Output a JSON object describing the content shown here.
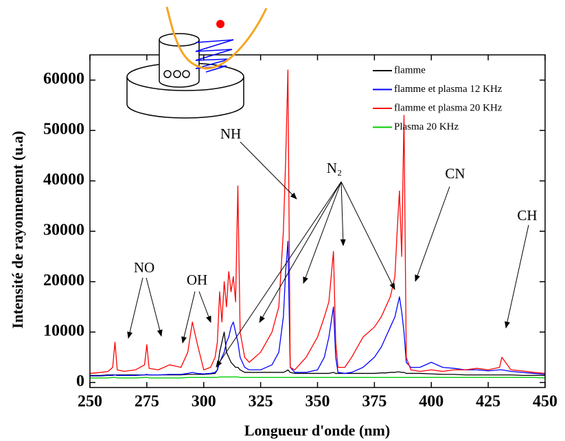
{
  "chart_data": {
    "type": "line",
    "x_label": "Longueur d'onde (nm)",
    "y_label": "Intensité de rayonnement (u.a)",
    "xlim": [
      250,
      450
    ],
    "xticks": [
      250,
      275,
      300,
      325,
      350,
      375,
      400,
      425,
      450
    ],
    "ylim": [
      -1000,
      65000
    ],
    "yticks": [
      0,
      10000,
      20000,
      30000,
      40000,
      50000,
      60000
    ],
    "legend_position": "upper right",
    "annotations": [
      "NO",
      "OH",
      "NH",
      "N₂",
      "CN",
      "CH"
    ],
    "x": [
      250,
      255,
      258,
      260,
      261,
      262,
      265,
      270,
      274,
      275,
      276,
      280,
      285,
      290,
      293,
      295,
      297,
      300,
      303,
      305,
      306,
      307,
      308,
      309,
      310,
      311,
      312,
      313,
      314,
      315,
      316,
      318,
      320,
      325,
      330,
      333,
      335,
      336,
      337,
      338,
      340,
      345,
      350,
      353,
      355,
      357,
      358,
      359,
      362,
      365,
      370,
      375,
      378,
      380,
      382,
      384,
      385,
      386,
      387,
      388,
      389,
      391,
      395,
      400,
      405,
      410,
      415,
      420,
      425,
      430,
      431,
      435,
      440,
      445,
      450
    ],
    "series": [
      {
        "name": "flamme",
        "color": "#000000",
        "values": [
          1400,
          1400,
          1500,
          1500,
          1500,
          1500,
          1500,
          1500,
          1500,
          1500,
          1500,
          1500,
          1500,
          1500,
          1600,
          1600,
          1600,
          1600,
          1700,
          1800,
          2500,
          6000,
          8000,
          10000,
          6000,
          5000,
          4000,
          3500,
          3000,
          3000,
          2500,
          2000,
          2000,
          2000,
          2000,
          2000,
          2000,
          2200,
          2500,
          2000,
          1800,
          1800,
          1800,
          1800,
          1800,
          2000,
          1800,
          1800,
          1800,
          1800,
          1800,
          1800,
          1900,
          1900,
          2000,
          2000,
          2100,
          2100,
          2000,
          2000,
          1800,
          1800,
          1800,
          1700,
          1600,
          1600,
          1500,
          1500,
          1500,
          1500,
          1500,
          1500,
          1400,
          1400,
          1400
        ]
      },
      {
        "name": "flamme et plasma 12 KHz",
        "color": "#0000ff",
        "values": [
          1300,
          1300,
          1400,
          1400,
          1500,
          1400,
          1400,
          1400,
          1500,
          1600,
          1500,
          1500,
          1600,
          1600,
          1800,
          2000,
          1800,
          1700,
          1800,
          2000,
          2500,
          4000,
          5000,
          6000,
          8000,
          9000,
          11000,
          12000,
          10000,
          8000,
          5000,
          3000,
          2500,
          2500,
          3500,
          6000,
          13000,
          22000,
          28000,
          3000,
          2000,
          2000,
          2500,
          5000,
          9000,
          15000,
          5000,
          2000,
          1800,
          2000,
          3000,
          5000,
          7000,
          9000,
          11000,
          13000,
          15000,
          17000,
          14000,
          10000,
          4000,
          3000,
          3000,
          4000,
          3000,
          2800,
          2500,
          2500,
          2300,
          2500,
          2500,
          2200,
          2000,
          1800,
          1600
        ]
      },
      {
        "name": "flamme et plasma 20 KHz",
        "color": "#ff0000",
        "values": [
          1800,
          2000,
          2200,
          3000,
          8000,
          2500,
          2200,
          2500,
          3500,
          7500,
          2800,
          2500,
          3500,
          3000,
          6000,
          12000,
          8000,
          2500,
          3000,
          5000,
          8000,
          18000,
          12000,
          20000,
          15000,
          22000,
          18000,
          21000,
          16000,
          39000,
          10000,
          5000,
          4000,
          6000,
          10000,
          15000,
          30000,
          44000,
          62000,
          3000,
          2500,
          5000,
          9000,
          13000,
          16000,
          26000,
          8000,
          3000,
          3000,
          5000,
          9000,
          11000,
          13000,
          15000,
          17000,
          21000,
          30000,
          38000,
          25000,
          53000,
          5000,
          2500,
          2200,
          2500,
          2200,
          2500,
          2500,
          2800,
          2500,
          3000,
          5000,
          2500,
          2300,
          2000,
          1800
        ]
      },
      {
        "name": "Plasma 20 KHz",
        "color": "#00cc00",
        "values": [
          900,
          900,
          900,
          1000,
          1000,
          900,
          900,
          900,
          1000,
          1000,
          900,
          900,
          900,
          900,
          1000,
          1000,
          1000,
          1000,
          1000,
          1000,
          1000,
          1100,
          1100,
          1100,
          1100,
          1100,
          1100,
          1100,
          1100,
          1100,
          1000,
          1000,
          1000,
          1000,
          1000,
          1000,
          1000,
          1000,
          1000,
          1000,
          1000,
          1000,
          1000,
          1000,
          1000,
          1000,
          1000,
          1000,
          1000,
          1000,
          1000,
          1000,
          1000,
          1000,
          1000,
          1000,
          1000,
          1000,
          1000,
          1000,
          1000,
          1000,
          1000,
          1000,
          1000,
          1000,
          1000,
          1000,
          1000,
          1000,
          1000,
          1000,
          1000,
          1000,
          900
        ]
      }
    ]
  }
}
